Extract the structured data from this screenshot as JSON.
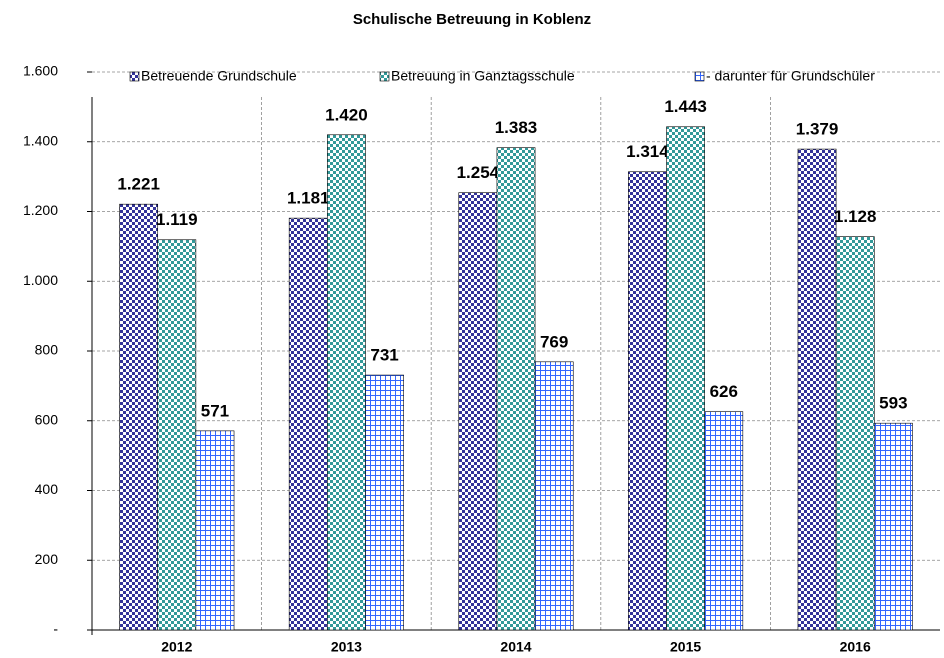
{
  "chart_data": {
    "type": "bar",
    "title": "Schulische Betreuung in Koblenz",
    "categories": [
      "2012",
      "2013",
      "2014",
      "2015",
      "2016"
    ],
    "series": [
      {
        "name": "Betreuende Grundschule",
        "color": "#333399",
        "values": [
          1221,
          1181,
          1254,
          1314,
          1379
        ],
        "value_labels": [
          "1.221",
          "1.181",
          "1.254",
          "1.314",
          "1.379"
        ]
      },
      {
        "name": "Betreuung in Ganztagsschule",
        "color": "#339999",
        "values": [
          1119,
          1420,
          1383,
          1443,
          1128
        ],
        "value_labels": [
          "1.119",
          "1.420",
          "1.383",
          "1.443",
          "1.128"
        ]
      },
      {
        "name": " - darunter für Grundschüler",
        "color": "#3366ff",
        "values": [
          571,
          731,
          769,
          626,
          593
        ],
        "value_labels": [
          "571",
          "731",
          "769",
          "626",
          "593"
        ]
      }
    ],
    "ylim": [
      0,
      1600
    ],
    "yticks": [
      {
        "value": 0,
        "label": "-"
      },
      200,
      400,
      600,
      800,
      {
        "value": 1000,
        "label": "1.000"
      },
      {
        "value": 1200,
        "label": "1.200"
      },
      {
        "value": 1400,
        "label": "1.400"
      },
      {
        "value": 1600,
        "label": "1.600"
      }
    ],
    "grid": true,
    "legend": "top"
  }
}
